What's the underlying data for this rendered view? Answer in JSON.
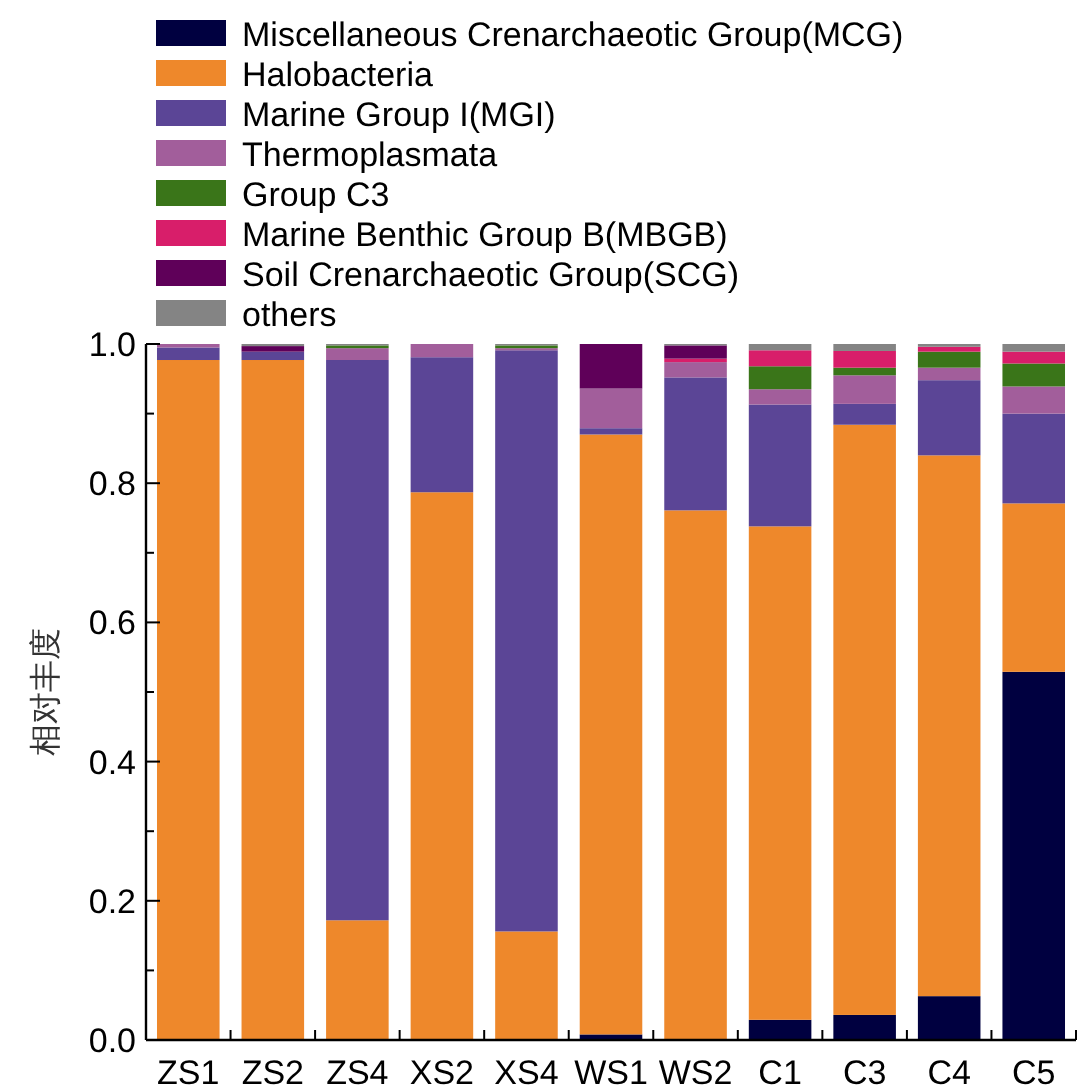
{
  "chart_data": {
    "type": "bar",
    "stacked": true,
    "ylabel": "相对丰度",
    "categories": [
      "ZS1",
      "ZS2",
      "ZS4",
      "XS2",
      "XS4",
      "WS1",
      "WS2",
      "C1",
      "C3",
      "C4",
      "C5"
    ],
    "series": [
      {
        "name": "Miscellaneous Crenarchaeotic Group(MCG)",
        "color": "#000040",
        "values": [
          0,
          0,
          0,
          0,
          0,
          0.008,
          0,
          0.029,
          0.036,
          0.063,
          0.529
        ]
      },
      {
        "name": "Halobacteria",
        "color": "#ee882b",
        "values": [
          0.977,
          0.977,
          0.172,
          0.787,
          0.156,
          0.862,
          0.761,
          0.709,
          0.848,
          0.777,
          0.242
        ]
      },
      {
        "name": "Marine Group I(MGI)",
        "color": "#5b4596",
        "values": [
          0.018,
          0.012,
          0.805,
          0.194,
          0.835,
          0.009,
          0.191,
          0.175,
          0.03,
          0.108,
          0.129
        ]
      },
      {
        "name": "Thermoplasmata",
        "color": "#a25e9b",
        "values": [
          0.005,
          0,
          0.017,
          0.019,
          0.003,
          0.057,
          0.022,
          0.022,
          0.041,
          0.018,
          0.039
        ]
      },
      {
        "name": "Group C3",
        "color": "#3a7519",
        "values": [
          0,
          0,
          0.004,
          0,
          0.004,
          0,
          0,
          0.033,
          0.011,
          0.023,
          0.033
        ]
      },
      {
        "name": "Marine Benthic Group B(MBGB)",
        "color": "#d81e6a",
        "values": [
          0,
          0,
          0,
          0,
          0,
          0,
          0.005,
          0.023,
          0.024,
          0.007,
          0.017
        ]
      },
      {
        "name": "Soil Crenarchaeotic Group(SCG)",
        "color": "#5f0059",
        "values": [
          0,
          0.008,
          0,
          0,
          0,
          0.064,
          0.019,
          0,
          0,
          0,
          0
        ]
      },
      {
        "name": "others",
        "color": "#848484",
        "values": [
          0,
          0.003,
          0.002,
          0,
          0.002,
          0,
          0.002,
          0.009,
          0.01,
          0.004,
          0.011
        ]
      }
    ],
    "ylim": [
      0,
      1
    ],
    "yticks": [
      {
        "value": 0,
        "label": "0.0"
      },
      {
        "value": 0.1,
        "label": null
      },
      {
        "value": 0.2,
        "label": "0.2"
      },
      {
        "value": 0.3,
        "label": null
      },
      {
        "value": 0.4,
        "label": "0.4"
      },
      {
        "value": 0.5,
        "label": null
      },
      {
        "value": 0.6,
        "label": "0.6"
      },
      {
        "value": 0.7,
        "label": null
      },
      {
        "value": 0.8,
        "label": "0.8"
      },
      {
        "value": 0.9,
        "label": null
      },
      {
        "value": 1,
        "label": "1.0"
      }
    ],
    "grid": false,
    "legend": "top"
  }
}
